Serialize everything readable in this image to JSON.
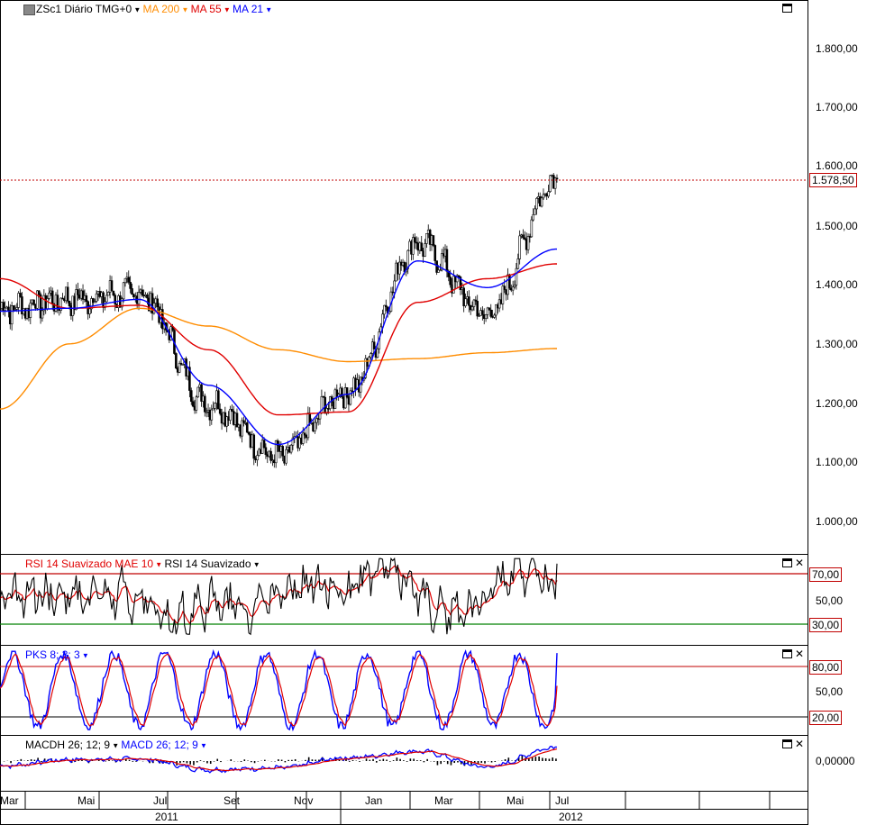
{
  "main_legend": {
    "symbol": "ZSc1 Diário TMG+0",
    "ma200": "MA 200",
    "ma55": "MA 55",
    "ma21": "MA 21"
  },
  "main_price_ticks": [
    "1.800,00",
    "1.700,00",
    "1.600,00",
    "1.500,00",
    "1.400,00",
    "1.300,00",
    "1.200,00",
    "1.100,00",
    "1.000,00"
  ],
  "last_price": "1.578,50",
  "rsi_legend": {
    "mae": "RSI 14 Suavizado MAE 10",
    "rsi": "RSI 14 Suavizado"
  },
  "rsi_levels": {
    "upper": "70,00",
    "mid": "50,00",
    "lower": "30,00"
  },
  "pks_legend": "PKS 8; 3; 3",
  "pks_levels": {
    "upper": "80,00",
    "mid": "50,00",
    "lower": "20,00"
  },
  "macd_legend": {
    "hist": "MACDH 26; 12; 9",
    "macd": "MACD 26; 12; 9"
  },
  "macd_zero": "0,00000",
  "x_months": [
    "Mar",
    "Mai",
    "Jul",
    "Set",
    "Nov",
    "Jan",
    "Mar",
    "Mai",
    "Jul"
  ],
  "x_years": [
    "2011",
    "2012"
  ],
  "colors": {
    "ma200": "#ff8c00",
    "ma55": "#e00000",
    "ma21": "#0000ff",
    "up_candle": "#ffffff",
    "down_candle": "#000000",
    "rsi": "#000000",
    "rsi_mae": "#e00000",
    "level70": "#c00000",
    "level30": "#008000"
  },
  "chart_data": {
    "type": "line",
    "title": "ZSc1 Diário TMG+0",
    "ylim": [
      930,
      1870
    ],
    "x": [
      "2011-03",
      "2011-05",
      "2011-07",
      "2011-09",
      "2011-11",
      "2012-01",
      "2012-03",
      "2012-05",
      "2012-07"
    ],
    "series": [
      {
        "name": "ZSc1",
        "values": [
          1360,
          1375,
          1385,
          1200,
          1110,
          1220,
          1470,
          1350,
          1578.5
        ]
      },
      {
        "name": "MA 21",
        "values": [
          1355,
          1360,
          1375,
          1230,
          1130,
          1215,
          1440,
          1395,
          1460
        ]
      },
      {
        "name": "MA 55",
        "values": [
          1410,
          1360,
          1365,
          1290,
          1180,
          1185,
          1370,
          1410,
          1435
        ]
      },
      {
        "name": "MA 200",
        "values": [
          1190,
          1300,
          1360,
          1330,
          1290,
          1270,
          1275,
          1285,
          1292
        ]
      }
    ]
  }
}
